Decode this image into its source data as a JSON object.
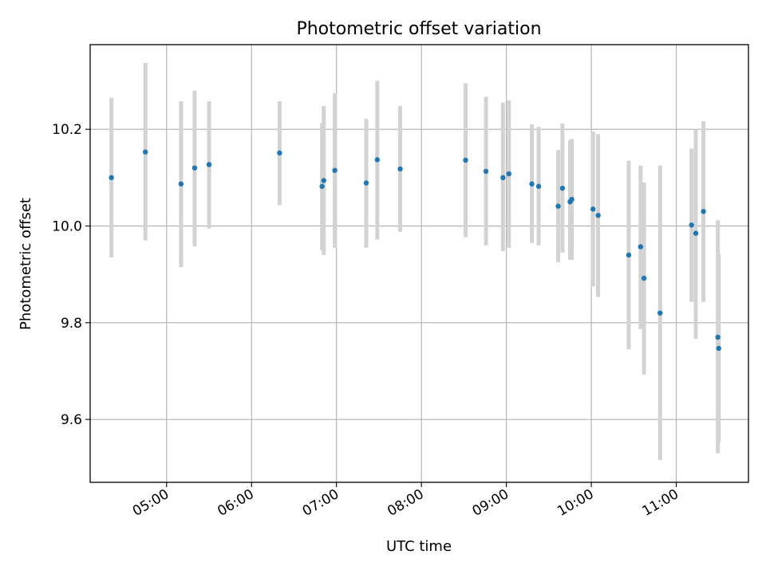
{
  "chart_data": {
    "type": "scatter",
    "title": "Photometric offset variation",
    "xlabel": "UTC time",
    "ylabel": "Photometric offset",
    "x_unit": "hours UTC",
    "xlim": [
      4.1,
      11.85
    ],
    "ylim": [
      9.47,
      10.375
    ],
    "grid": true,
    "x_ticks": [
      {
        "value": 5,
        "label": "05:00"
      },
      {
        "value": 6,
        "label": "06:00"
      },
      {
        "value": 7,
        "label": "07:00"
      },
      {
        "value": 8,
        "label": "08:00"
      },
      {
        "value": 9,
        "label": "09:00"
      },
      {
        "value": 10,
        "label": "10:00"
      },
      {
        "value": 11,
        "label": "11:00"
      }
    ],
    "y_ticks": [
      {
        "value": 9.6,
        "label": "9.6"
      },
      {
        "value": 9.8,
        "label": "9.8"
      },
      {
        "value": 10.0,
        "label": "10.0"
      },
      {
        "value": 10.2,
        "label": "10.2"
      }
    ],
    "colors": {
      "point": "#1f77b4",
      "errorbar": "#d3d3d3",
      "grid": "#b0b0b0"
    },
    "series": [
      {
        "points": [
          {
            "x": 4.35,
            "y": 10.1,
            "lo": 9.935,
            "hi": 10.265
          },
          {
            "x": 4.75,
            "y": 10.153,
            "lo": 9.97,
            "hi": 10.337
          },
          {
            "x": 5.17,
            "y": 10.087,
            "lo": 9.915,
            "hi": 10.258
          },
          {
            "x": 5.33,
            "y": 10.12,
            "lo": 9.958,
            "hi": 10.28
          },
          {
            "x": 5.5,
            "y": 10.127,
            "lo": 9.995,
            "hi": 10.258
          },
          {
            "x": 6.33,
            "y": 10.151,
            "lo": 10.043,
            "hi": 10.258
          },
          {
            "x": 6.83,
            "y": 10.082,
            "lo": 9.95,
            "hi": 10.213
          },
          {
            "x": 6.85,
            "y": 10.094,
            "lo": 9.94,
            "hi": 10.248
          },
          {
            "x": 6.98,
            "y": 10.115,
            "lo": 9.955,
            "hi": 10.275
          },
          {
            "x": 7.35,
            "y": 10.089,
            "lo": 9.955,
            "hi": 10.222
          },
          {
            "x": 7.48,
            "y": 10.137,
            "lo": 9.972,
            "hi": 10.3
          },
          {
            "x": 7.75,
            "y": 10.118,
            "lo": 9.988,
            "hi": 10.248
          },
          {
            "x": 8.52,
            "y": 10.136,
            "lo": 9.977,
            "hi": 10.295
          },
          {
            "x": 8.76,
            "y": 10.113,
            "lo": 9.96,
            "hi": 10.267
          },
          {
            "x": 8.96,
            "y": 10.1,
            "lo": 9.948,
            "hi": 10.255
          },
          {
            "x": 9.03,
            "y": 10.108,
            "lo": 9.955,
            "hi": 10.26
          },
          {
            "x": 9.3,
            "y": 10.087,
            "lo": 9.965,
            "hi": 10.21
          },
          {
            "x": 9.38,
            "y": 10.082,
            "lo": 9.96,
            "hi": 10.205
          },
          {
            "x": 9.61,
            "y": 10.041,
            "lo": 9.925,
            "hi": 10.157
          },
          {
            "x": 9.66,
            "y": 10.078,
            "lo": 9.945,
            "hi": 10.212
          },
          {
            "x": 9.75,
            "y": 10.05,
            "lo": 9.93,
            "hi": 10.177
          },
          {
            "x": 9.77,
            "y": 10.055,
            "lo": 9.93,
            "hi": 10.18
          },
          {
            "x": 10.02,
            "y": 10.035,
            "lo": 9.875,
            "hi": 10.195
          },
          {
            "x": 10.08,
            "y": 10.022,
            "lo": 9.853,
            "hi": 10.19
          },
          {
            "x": 10.44,
            "y": 9.94,
            "lo": 9.745,
            "hi": 10.135
          },
          {
            "x": 10.58,
            "y": 9.957,
            "lo": 9.787,
            "hi": 10.125
          },
          {
            "x": 10.62,
            "y": 9.892,
            "lo": 9.693,
            "hi": 10.09
          },
          {
            "x": 10.81,
            "y": 9.82,
            "lo": 9.516,
            "hi": 10.125
          },
          {
            "x": 11.18,
            "y": 10.002,
            "lo": 9.843,
            "hi": 10.16
          },
          {
            "x": 11.23,
            "y": 9.985,
            "lo": 9.767,
            "hi": 10.2
          },
          {
            "x": 11.32,
            "y": 10.03,
            "lo": 9.843,
            "hi": 10.217
          },
          {
            "x": 11.49,
            "y": 9.77,
            "lo": 9.53,
            "hi": 10.012
          },
          {
            "x": 11.5,
            "y": 9.747,
            "lo": 9.553,
            "hi": 9.942
          }
        ]
      }
    ]
  }
}
